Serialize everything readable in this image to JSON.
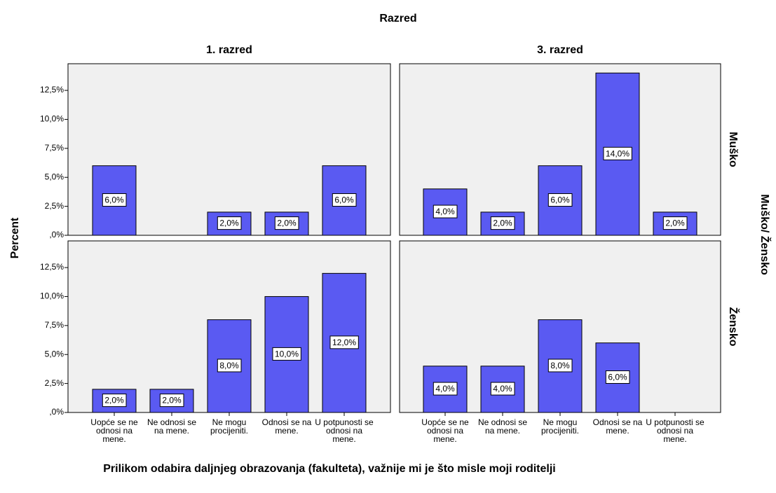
{
  "facets": {
    "title": "Razred",
    "columns": [
      "1. razred",
      "3. razred"
    ],
    "rows_title": "Muško/ Žensko",
    "rows": [
      "Muško",
      "Žensko"
    ],
    "ylabel": "Percent",
    "xlabel": "Prilikom odabira daljnjeg obrazovanja (fakulteta), važnije mi je što misle moji roditelji",
    "categories": [
      "Uopće se ne odnosi na mene.",
      "Ne odnosi se na mene.",
      "Ne mogu procijeniti.",
      "Odnosi se na mene.",
      "U potpunosti se odnosi na mene."
    ],
    "ylim": [
      0,
      14.8
    ],
    "yticks": [
      {
        "value": 0,
        "label": ",0%"
      },
      {
        "value": 2.5,
        "label": "2,5%"
      },
      {
        "value": 5,
        "label": "5,0%"
      },
      {
        "value": 7.5,
        "label": "7,5%"
      },
      {
        "value": 10,
        "label": "10,0%"
      },
      {
        "value": 12.5,
        "label": "12,5%"
      }
    ]
  },
  "chart_data": [
    {
      "type": "bar",
      "color": "#5a5af2",
      "values": [
        6,
        null,
        2,
        2,
        6
      ],
      "value_labels": [
        "6,0%",
        null,
        "2,0%",
        "2,0%",
        "6,0%"
      ]
    },
    {
      "type": "bar",
      "color": "#5a5af2",
      "values": [
        4,
        2,
        6,
        14,
        2
      ],
      "value_labels": [
        "4,0%",
        "2,0%",
        "6,0%",
        "14,0%",
        "2,0%"
      ]
    },
    {
      "type": "bar",
      "color": "#5a5af2",
      "values": [
        2,
        2,
        8,
        10,
        12
      ],
      "value_labels": [
        "2,0%",
        "2,0%",
        "8,0%",
        "10,0%",
        "12,0%"
      ]
    },
    {
      "type": "bar",
      "color": "#5a5af2",
      "values": [
        4,
        4,
        8,
        6,
        null
      ],
      "value_labels": [
        "4,0%",
        "4,0%",
        "8,0%",
        "6,0%",
        null
      ]
    }
  ]
}
